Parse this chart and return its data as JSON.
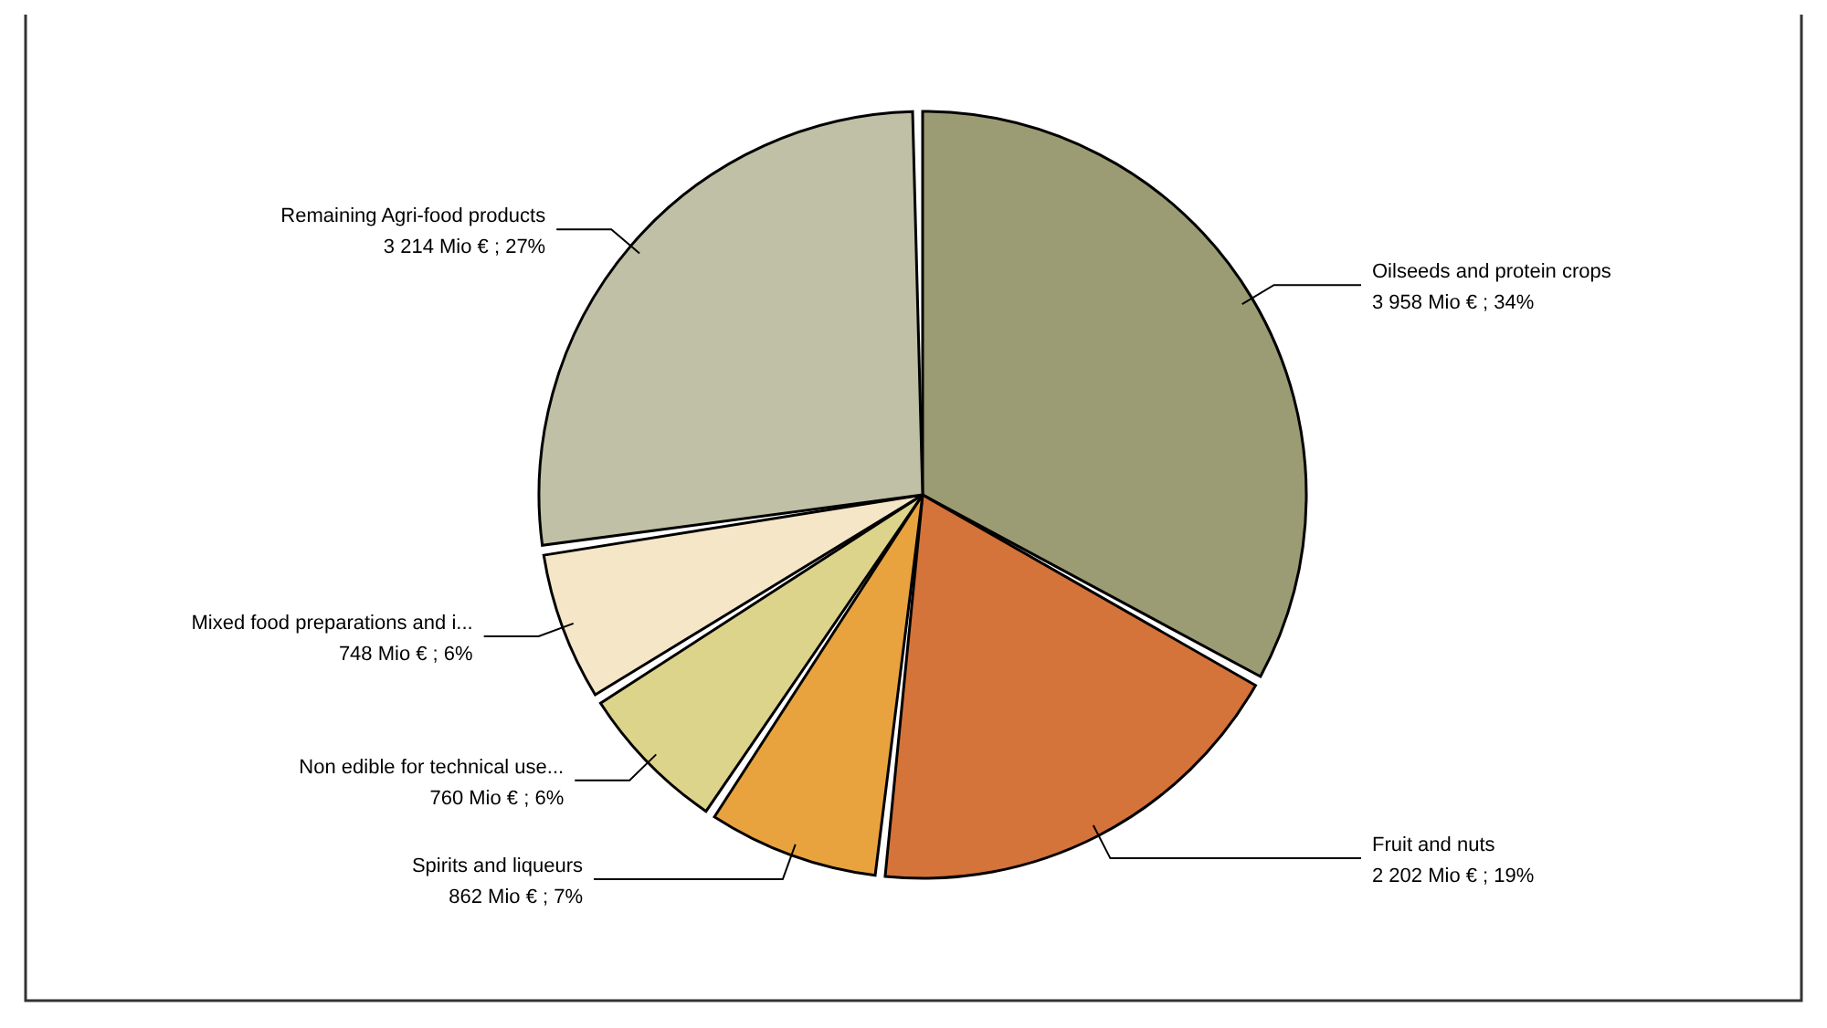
{
  "chart_data": {
    "type": "pie",
    "categories": [
      "Oilseeds and protein crops",
      "Fruit and nuts",
      "Spirits and liqueurs",
      "Non edible for technical use...",
      "Mixed food preparations and i...",
      "Remaining Agri-food products"
    ],
    "values": [
      3958,
      2202,
      862,
      760,
      748,
      3214
    ],
    "value_labels": [
      "3 958 Mio € ; 34%",
      "2 202 Mio € ; 19%",
      "862 Mio € ; 7%",
      "760 Mio € ; 6%",
      "748 Mio € ; 6%",
      "3 214 Mio € ; 27%"
    ],
    "colors": [
      "#9c9c74",
      "#d4733a",
      "#e8a33e",
      "#ddd48c",
      "#f5e6c8",
      "#c0c0a6"
    ]
  }
}
